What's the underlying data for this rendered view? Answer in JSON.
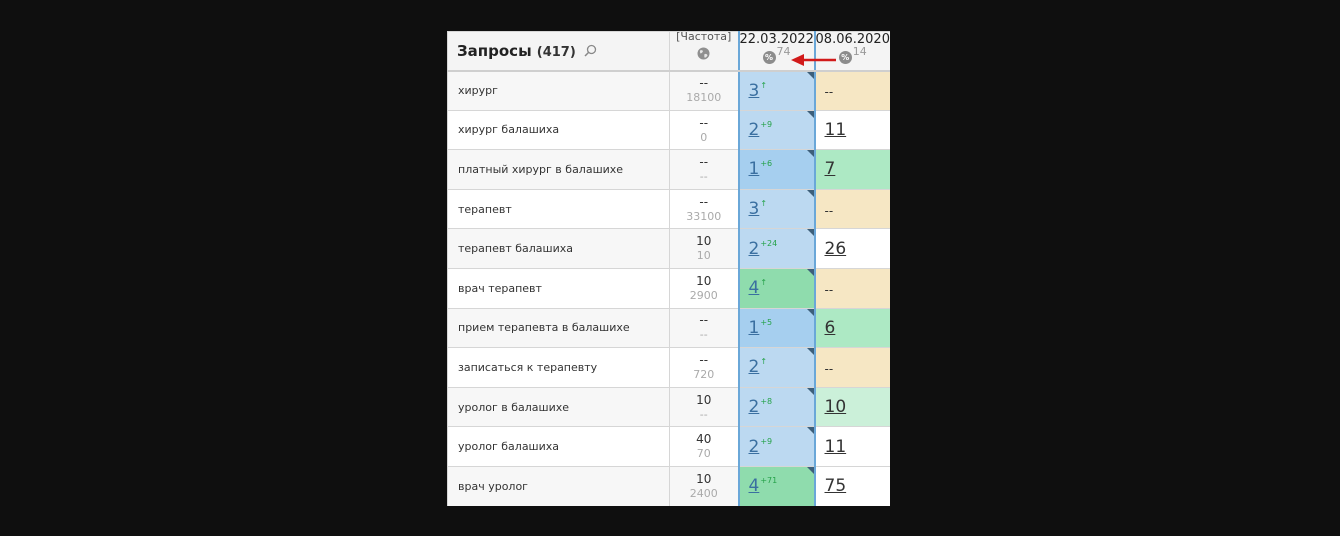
{
  "header": {
    "title": "Запросы",
    "count": "(417)",
    "freq_label": "[Частота]",
    "date1": "22.03.2022",
    "date1_count": "74",
    "date2": "08.06.2020",
    "date2_count": "14",
    "pct_symbol": "%"
  },
  "colors": {
    "blue_light": "#bcd9f1",
    "blue_mid": "#a6cfef",
    "green": "#8fdcad",
    "green_mid": "#ade9c4",
    "green_light": "#cbf0d9",
    "beige": "#f6e7c4",
    "delta": "#26a24a",
    "arrow": "#d11a1a"
  },
  "rows": [
    {
      "query": "хирург",
      "freq": "--",
      "freq_sub": "18100",
      "pos1": "3",
      "delta1": "↑",
      "pos2": "--"
    },
    {
      "query": "хирург балашиха",
      "freq": "--",
      "freq_sub": "0",
      "pos1": "2",
      "delta1": "+9",
      "pos2": "11"
    },
    {
      "query": "платный хирург в балашихе",
      "freq": "--",
      "freq_sub": "--",
      "pos1": "1",
      "delta1": "+6",
      "pos2": "7"
    },
    {
      "query": "терапевт",
      "freq": "--",
      "freq_sub": "33100",
      "pos1": "3",
      "delta1": "↑",
      "pos2": "--"
    },
    {
      "query": "терапевт балашиха",
      "freq": "10",
      "freq_sub": "10",
      "pos1": "2",
      "delta1": "+24",
      "pos2": "26"
    },
    {
      "query": "врач терапевт",
      "freq": "10",
      "freq_sub": "2900",
      "pos1": "4",
      "delta1": "↑",
      "pos2": "--"
    },
    {
      "query": "прием терапевта в балашихе",
      "freq": "--",
      "freq_sub": "--",
      "pos1": "1",
      "delta1": "+5",
      "pos2": "6"
    },
    {
      "query": "записаться к терапевту",
      "freq": "--",
      "freq_sub": "720",
      "pos1": "2",
      "delta1": "↑",
      "pos2": "--"
    },
    {
      "query": "уролог в балашихе",
      "freq": "10",
      "freq_sub": "--",
      "pos1": "2",
      "delta1": "+8",
      "pos2": "10"
    },
    {
      "query": "уролог балашиха",
      "freq": "40",
      "freq_sub": "70",
      "pos1": "2",
      "delta1": "+9",
      "pos2": "11"
    },
    {
      "query": "врач уролог",
      "freq": "10",
      "freq_sub": "2400",
      "pos1": "4",
      "delta1": "+71",
      "pos2": "75"
    }
  ],
  "cell_colors": {
    "pos1": [
      "blue_light",
      "blue_light",
      "blue_mid",
      "blue_light",
      "blue_light",
      "green",
      "blue_mid",
      "blue_light",
      "blue_light",
      "blue_light",
      "green"
    ],
    "pos2": [
      "beige",
      "white",
      "green_mid",
      "beige",
      "white",
      "beige",
      "green_mid",
      "beige",
      "green_light",
      "white",
      "white"
    ]
  }
}
